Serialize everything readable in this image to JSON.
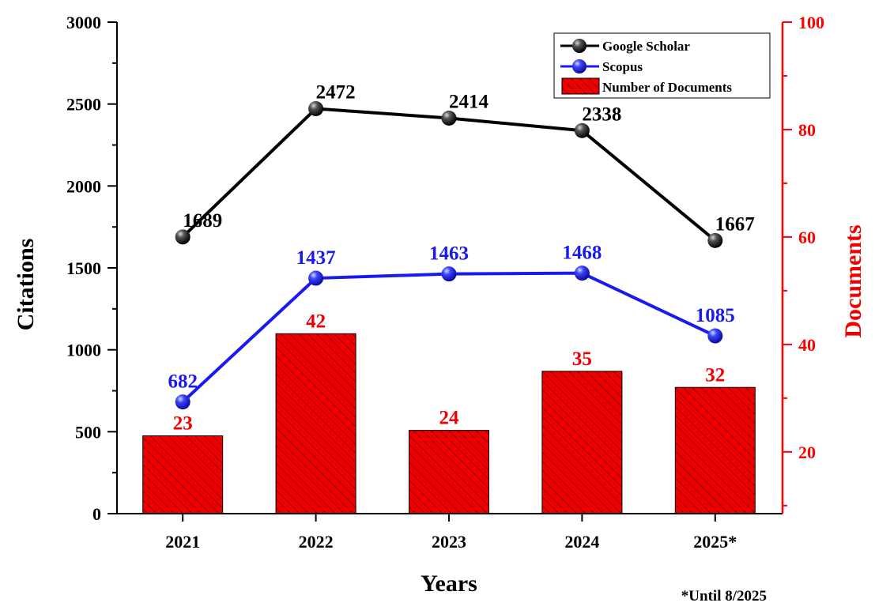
{
  "chart_data": {
    "type": "bar+line",
    "categories": [
      "2021",
      "2022",
      "2023",
      "2024",
      "2025*"
    ],
    "x_axis": {
      "label": "Years"
    },
    "y_left": {
      "label": "Citations",
      "range": [
        0,
        3000
      ],
      "ticks": [
        0,
        500,
        1000,
        1500,
        2000,
        2500,
        3000
      ]
    },
    "y_right": {
      "label": "Documents",
      "range": [
        8.5,
        100
      ],
      "ticks": [
        20,
        40,
        60,
        80,
        100
      ],
      "color": "#ff0000"
    },
    "series": [
      {
        "name": "Google Scholar",
        "kind": "line",
        "axis": "left",
        "color": "#000000",
        "values": [
          1689,
          2472,
          2414,
          2338,
          1667
        ]
      },
      {
        "name": "Scopus",
        "kind": "line",
        "axis": "left",
        "color": "#1a1aee",
        "values": [
          682,
          1437,
          1463,
          1468,
          1085
        ]
      },
      {
        "name": "Number of Documents",
        "kind": "bar",
        "axis": "right",
        "color": "#ee0000",
        "pattern": "diagonal-hatch",
        "values": [
          23,
          42,
          24,
          35,
          32
        ]
      }
    ],
    "legend": {
      "position": "top-right"
    },
    "grid": false,
    "footnote": "*Until 8/2025"
  }
}
